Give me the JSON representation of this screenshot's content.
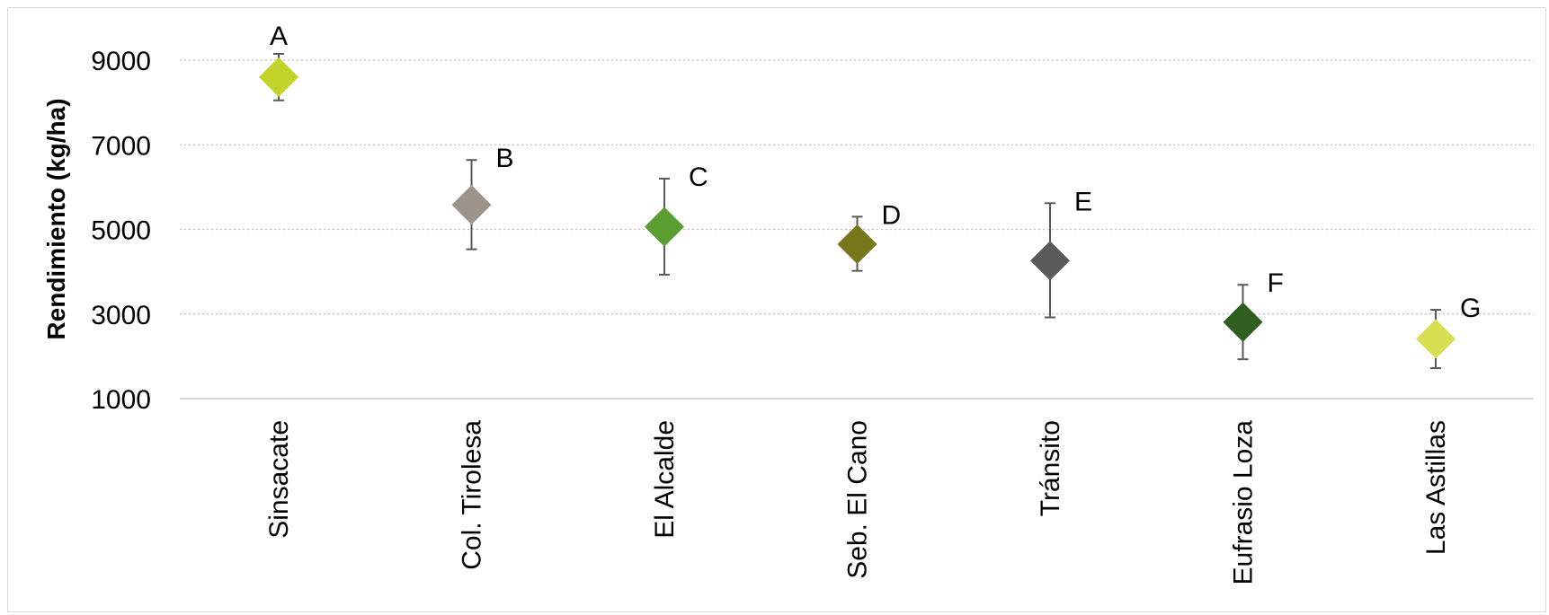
{
  "chart_data": {
    "type": "scatter",
    "ylabel": "Rendimiento (kg/ha)",
    "ylim": [
      1000,
      9000
    ],
    "yticks": [
      "1000",
      "3000",
      "5000",
      "7000",
      "9000"
    ],
    "grid": "horizontal dotted",
    "categories": [
      "Sinsacate",
      "Col. Tirolesa",
      "El Alcalde",
      "Seb. El Cano",
      "Tránsito",
      "Eufrasio Loza",
      "Las Astillas"
    ],
    "values": [
      8600,
      5580,
      5060,
      4650,
      4260,
      2810,
      2410
    ],
    "error_low": [
      8050,
      4530,
      3930,
      4020,
      2920,
      1930,
      1720
    ],
    "error_high": [
      9150,
      6640,
      6200,
      5300,
      5620,
      3690,
      3100
    ],
    "letters": [
      "A",
      "B",
      "C",
      "D",
      "E",
      "F",
      "G"
    ],
    "colors": [
      "#c3d32a",
      "#9c948b",
      "#5a9e32",
      "#77781b",
      "#5d5956",
      "#2f5e1e",
      "#d6e052"
    ],
    "error_bar_color": "#595959"
  }
}
